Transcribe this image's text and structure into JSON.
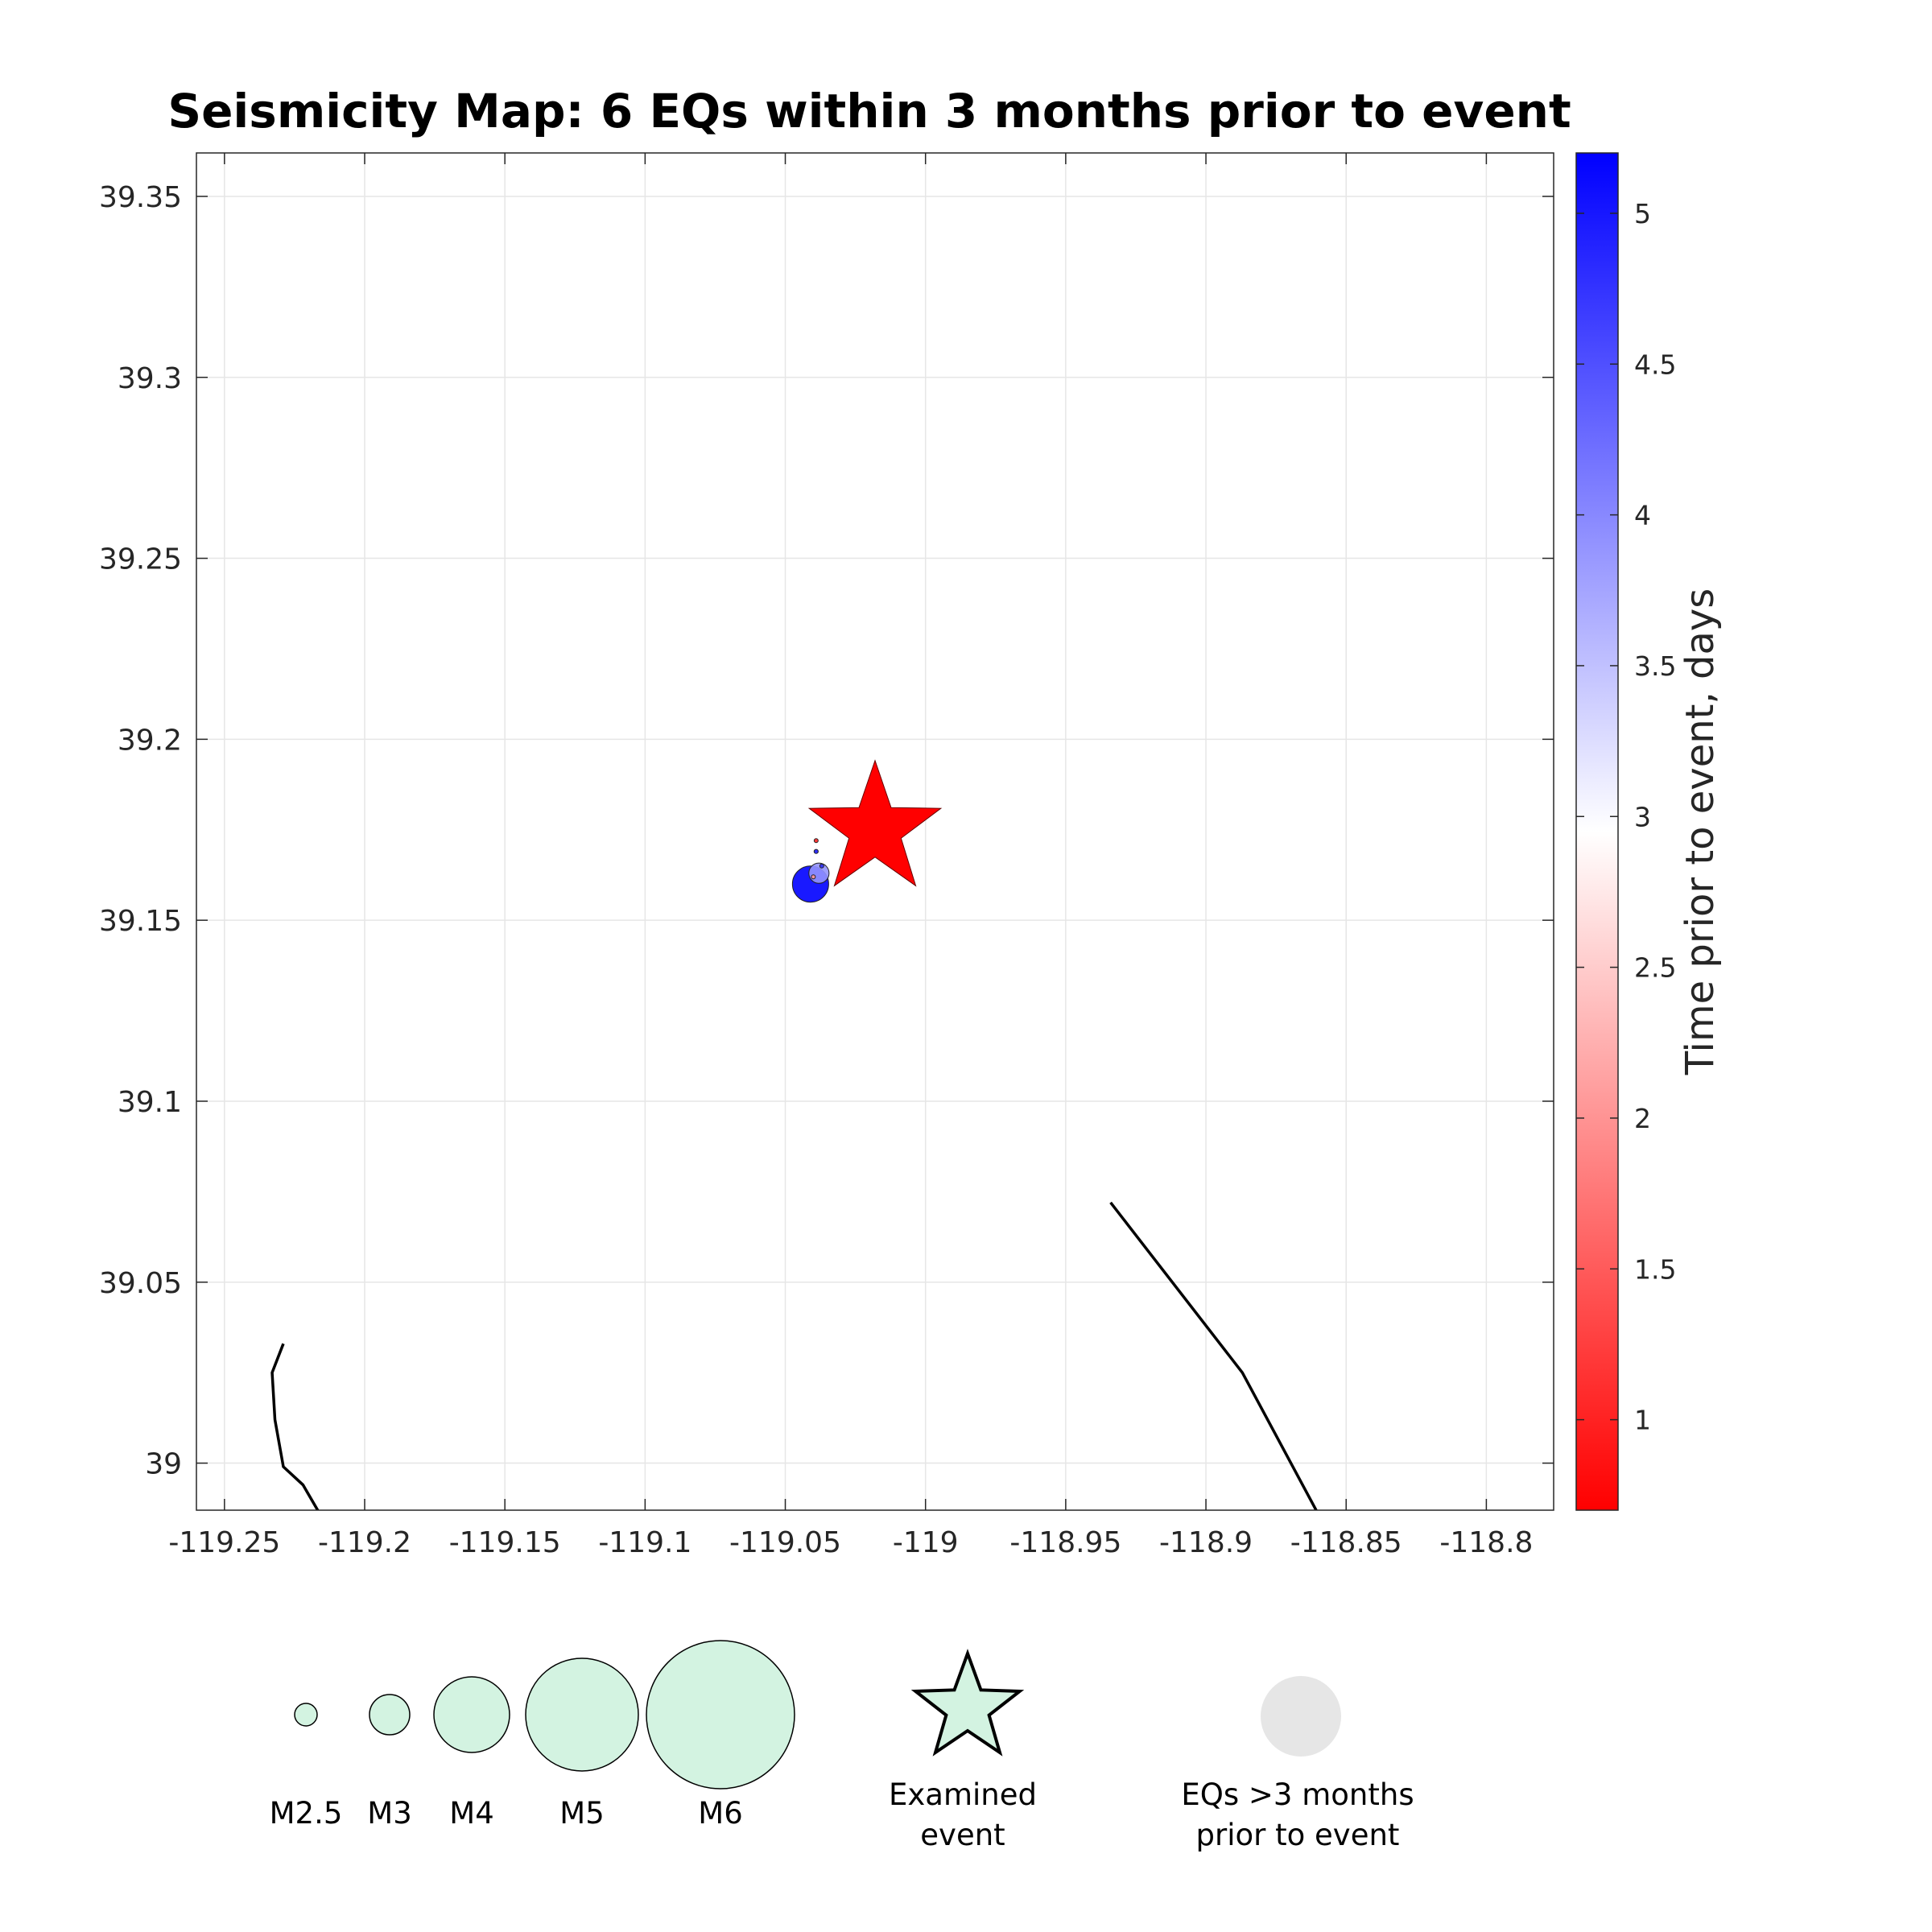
{
  "chart_data": {
    "type": "scatter",
    "title": "Seismicity Map: 6 EQs within 3 months prior to event",
    "xlim": [
      -119.26,
      -118.776
    ],
    "ylim": [
      38.987,
      39.362
    ],
    "x_ticks": [
      -119.25,
      -119.2,
      -119.15,
      -119.1,
      -119.05,
      -119,
      -118.95,
      -118.9,
      -118.85,
      -118.8
    ],
    "x_tick_labels": [
      "-119.25",
      "-119.2",
      "-119.15",
      "-119.1",
      "-119.05",
      "-119",
      "-118.95",
      "-118.9",
      "-118.85",
      "-118.8"
    ],
    "y_ticks": [
      39,
      39.05,
      39.1,
      39.15,
      39.2,
      39.25,
      39.3,
      39.35
    ],
    "y_tick_labels": [
      "39",
      "39.05",
      "39.1",
      "39.15",
      "39.2",
      "39.25",
      "39.3",
      "39.35"
    ],
    "grid": true,
    "examined_event": {
      "lon": -119.018,
      "lat": 39.175,
      "color": "#ff0000"
    },
    "earthquakes": [
      {
        "lon": -119.041,
        "lat": 39.16,
        "mag": 3.6,
        "days_prior": 5.2
      },
      {
        "lon": -119.038,
        "lat": 39.163,
        "mag": 2.9,
        "days_prior": 3.9
      },
      {
        "lon": -119.039,
        "lat": 39.169,
        "mag": 1.0,
        "days_prior": 5.0
      },
      {
        "lon": -119.039,
        "lat": 39.172,
        "mag": 0.9,
        "days_prior": 1.0
      },
      {
        "lon": -119.037,
        "lat": 39.165,
        "mag": 0.8,
        "days_prior": 4.8
      },
      {
        "lon": -119.04,
        "lat": 39.162,
        "mag": 0.7,
        "days_prior": 2.0
      }
    ],
    "fault_lines": [
      [
        [
          -119.229,
          39.033
        ],
        [
          -119.233,
          39.025
        ],
        [
          -119.232,
          39.012
        ],
        [
          -119.229,
          38.999
        ],
        [
          -119.222,
          38.994
        ],
        [
          -119.216,
          38.986
        ]
      ],
      [
        [
          -118.934,
          39.072
        ],
        [
          -118.887,
          39.025
        ],
        [
          -118.86,
          38.986
        ]
      ]
    ],
    "colorbar": {
      "label": "Time prior to event, days",
      "range": [
        0.7,
        5.2
      ],
      "ticks": [
        1,
        1.5,
        2,
        2.5,
        3,
        3.5,
        4,
        4.5,
        5
      ],
      "tick_labels": [
        "1",
        "1.5",
        "2",
        "2.5",
        "3",
        "3.5",
        "4",
        "4.5",
        "5"
      ],
      "colors": [
        "#ff0000",
        "#ffffff",
        "#0000ff"
      ]
    },
    "legend": {
      "magnitudes": [
        {
          "label": "M2.5",
          "mag": 2.5
        },
        {
          "label": "M3",
          "mag": 3
        },
        {
          "label": "M4",
          "mag": 4
        },
        {
          "label": "M5",
          "mag": 5
        },
        {
          "label": "M6",
          "mag": 6
        }
      ],
      "marker_color": "#d3f3e1",
      "examined_label": [
        "Examined",
        "event"
      ],
      "old_eq_label": [
        "EQs >3 months",
        "prior to event"
      ],
      "old_eq_color": "#e6e6e6"
    }
  }
}
